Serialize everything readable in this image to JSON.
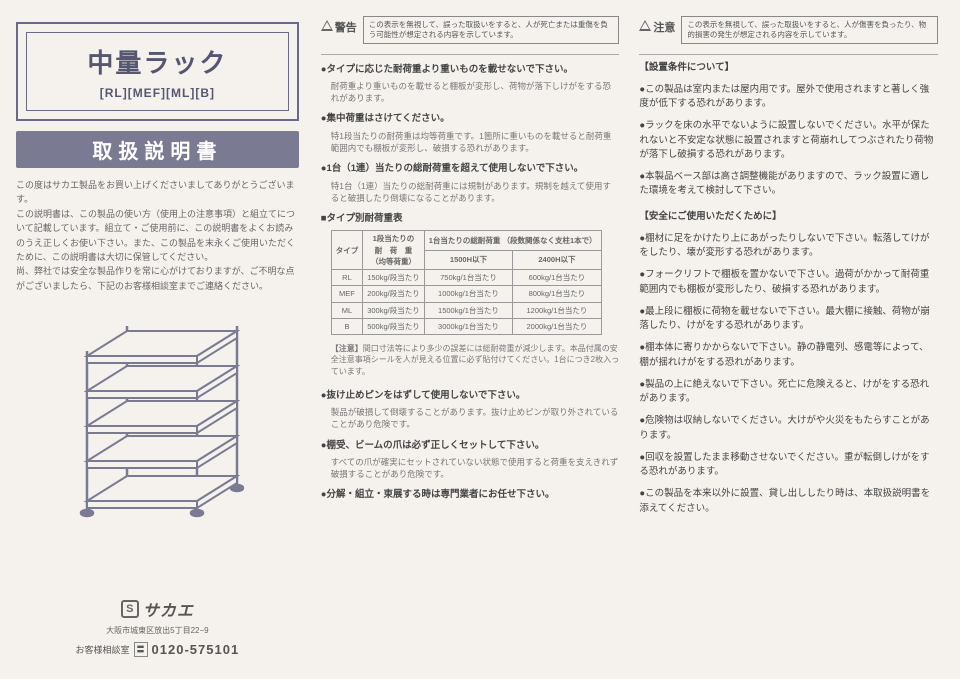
{
  "left": {
    "title_main": "中量ラック",
    "models": "[RL][MEF][ML][B]",
    "banner": "取扱説明書",
    "intro": "この度はサカエ製品をお買い上げくださいましてありがとうございます。\nこの説明書は、この製品の使い方（使用上の注意事項）と組立てについて記載しています。組立て・ご使用前に、この説明書をよくお読みのうえ正しくお使い下さい。また、この製品を末永くご使用いただくために、この説明書は大切に保管してください。\n尚、弊社では安全な製品作りを常に心がけておりますが、ご不明な点がございましたら、下記のお客様相談室までご連絡ください。",
    "brand_name": "サカエ",
    "address": "大阪市城東区放出5丁目22−9",
    "phone_label": "お客様相談室",
    "phone_num": "0120-575101"
  },
  "warn": {
    "keigoku_label": "警告",
    "keigoku_text": "この表示を無視して、誤った取扱いをすると、人が死亡または重傷を負う可能性が想定される内容を示しています。",
    "chuui_label": "注意",
    "chuui_text": "この表示を無視して、誤った取扱いをすると、人が傷害を負ったり、物的損害の発生が想定される内容を示しています。"
  },
  "mid": {
    "s1_head": "●タイプに応じた耐荷重より重いものを載せないで下さい。",
    "s1_body": "耐荷重より重いものを載せると棚板が変形し、荷物が落下しけがをする恐れがあります。",
    "s2_head": "●集中荷重はさけてください。",
    "s2_body": "特1段当たりの耐荷重は均等荷重です。1箇所に重いものを載せると耐荷重範囲内でも棚板が変形し、破損する恐れがあります。",
    "s3_head": "●1台（1連）当たりの総耐荷重を超えて使用しないで下さい。",
    "s3_body": "特1台（1連）当たりの総耐荷重には規制があります。規制を越えて使用すると破損したり倒壊になることがあります。",
    "tbl_head": "■タイプ別耐荷重表",
    "tbl": {
      "head_r1c1": "タイプ",
      "head_r1c2": "1段当たりの\n耐　荷　重\n（均等荷重）",
      "head_r1c3": "1台当たりの総耐荷重\n（段数関係なく支柱1本で）",
      "sub_a": "1500H以下",
      "sub_b": "2400H以下",
      "rows": [
        {
          "t": "RL",
          "a": "150kg/段当たり",
          "b": "750kg/1台当たり",
          "c": "600kg/1台当たり"
        },
        {
          "t": "MEF",
          "a": "200kg/段当たり",
          "b": "1000kg/1台当たり",
          "c": "800kg/1台当たり"
        },
        {
          "t": "ML",
          "a": "300kg/段当たり",
          "b": "1500kg/1台当たり",
          "c": "1200kg/1台当たり"
        },
        {
          "t": "B",
          "a": "500kg/段当たり",
          "b": "3000kg/1台当たり",
          "c": "2000kg/1台当たり"
        }
      ]
    },
    "note_label": "【注意】",
    "note_body": "間口寸法等により多少の誤差には総耐荷重が減少します。本品付属の安全注意事項シールを人が見える位置に必ず貼付けてください。1台につき2枚入っています。",
    "s4_head": "●抜け止めピンをはずして使用しないで下さい。",
    "s4_body": "製品が破損して倒壊することがあります。抜け止めピンが取り外されていることがあり危険です。",
    "s5_head": "●棚受、ビームの爪は必ず正しくセットして下さい。",
    "s5_body": "すべての爪が確実にセットされていない状態で使用すると荷重を支えきれず破損することがあり危険です。",
    "s6_head": "●分解・組立・束展する時は専門業者にお任せ下さい。"
  },
  "right": {
    "cat1": "【設置条件について】",
    "r1_head": "●",
    "r1_body": "この製品は室内または屋内用です。屋外で使用されますと著しく強度が低下する恐れがあります。",
    "r2_head": "●",
    "r2_body": "ラックを床の水平でないように設置しないでください。水平が保たれないと不安定な状態に設置されますと荷崩れしてつぶされたり荷物が落下し破損する恐れがあります。",
    "r3_head": "●",
    "r3_body": "本製品ベース部は高さ調整機能がありますので、ラック設置に適した環境を考えて検討して下さい。",
    "cat2": "【安全にご使用いただくために】",
    "r4_body": "棚材に足をかけたり上にあがったりしないで下さい。転落してけがをしたり、壊が変形する恐れがあります。",
    "r5_body": "フォークリフトで棚板を置かないで下さい。過荷がかかって耐荷重範囲内でも棚板が変形したり、破損する恐れがあります。",
    "r6_body": "最上段に棚板に荷物を載せないで下さい。最大棚に接触、荷物が崩落したり、けがをする恐れがあります。",
    "r7_body": "棚本体に寄りかからないで下さい。静の静電列、感電等によって、棚が揺れけがをする恐れがあります。",
    "r8_body": "製品の上に絶えないで下さい。死亡に危険えると、けがをする恐れがあります。",
    "r9_body": "危険物は収納しないでください。大けがや火災をもたらすことがあります。",
    "r10_body": "回収を設置したまま移動させないでください。重が転倒しけがをする恐れがあります。",
    "r11_body": "この製品を本来以外に設置、貸し出ししたり時は、本取扱説明書を添えてください。"
  }
}
